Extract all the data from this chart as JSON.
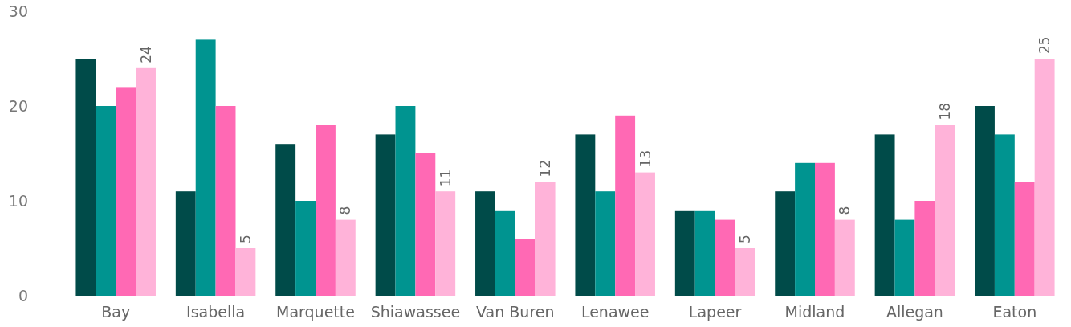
{
  "chart_data": {
    "type": "bar",
    "categories": [
      "Bay",
      "Isabella",
      "Marquette",
      "Shiawassee",
      "Van Buren",
      "Lenawee",
      "Lapeer",
      "Midland",
      "Allegan",
      "Eaton"
    ],
    "series": [
      {
        "color": "#004b49",
        "values": [
          25,
          11,
          16,
          17,
          11,
          17,
          9,
          11,
          17,
          20
        ]
      },
      {
        "color": "#009490",
        "values": [
          20,
          27,
          10,
          20,
          9,
          11,
          9,
          14,
          8,
          17
        ]
      },
      {
        "color": "#ff69b4",
        "values": [
          22,
          20,
          18,
          15,
          6,
          19,
          8,
          14,
          10,
          12
        ]
      },
      {
        "color": "#ffb3d9",
        "values": [
          24,
          5,
          8,
          11,
          12,
          13,
          5,
          8,
          18,
          25
        ],
        "value_labels": [
          "24",
          "5",
          "8",
          "11",
          "12",
          "13",
          "5",
          "8",
          "18",
          "25"
        ]
      }
    ],
    "ylim": [
      0,
      30
    ],
    "yticks": [
      0,
      10,
      20,
      30
    ],
    "grid": false
  }
}
